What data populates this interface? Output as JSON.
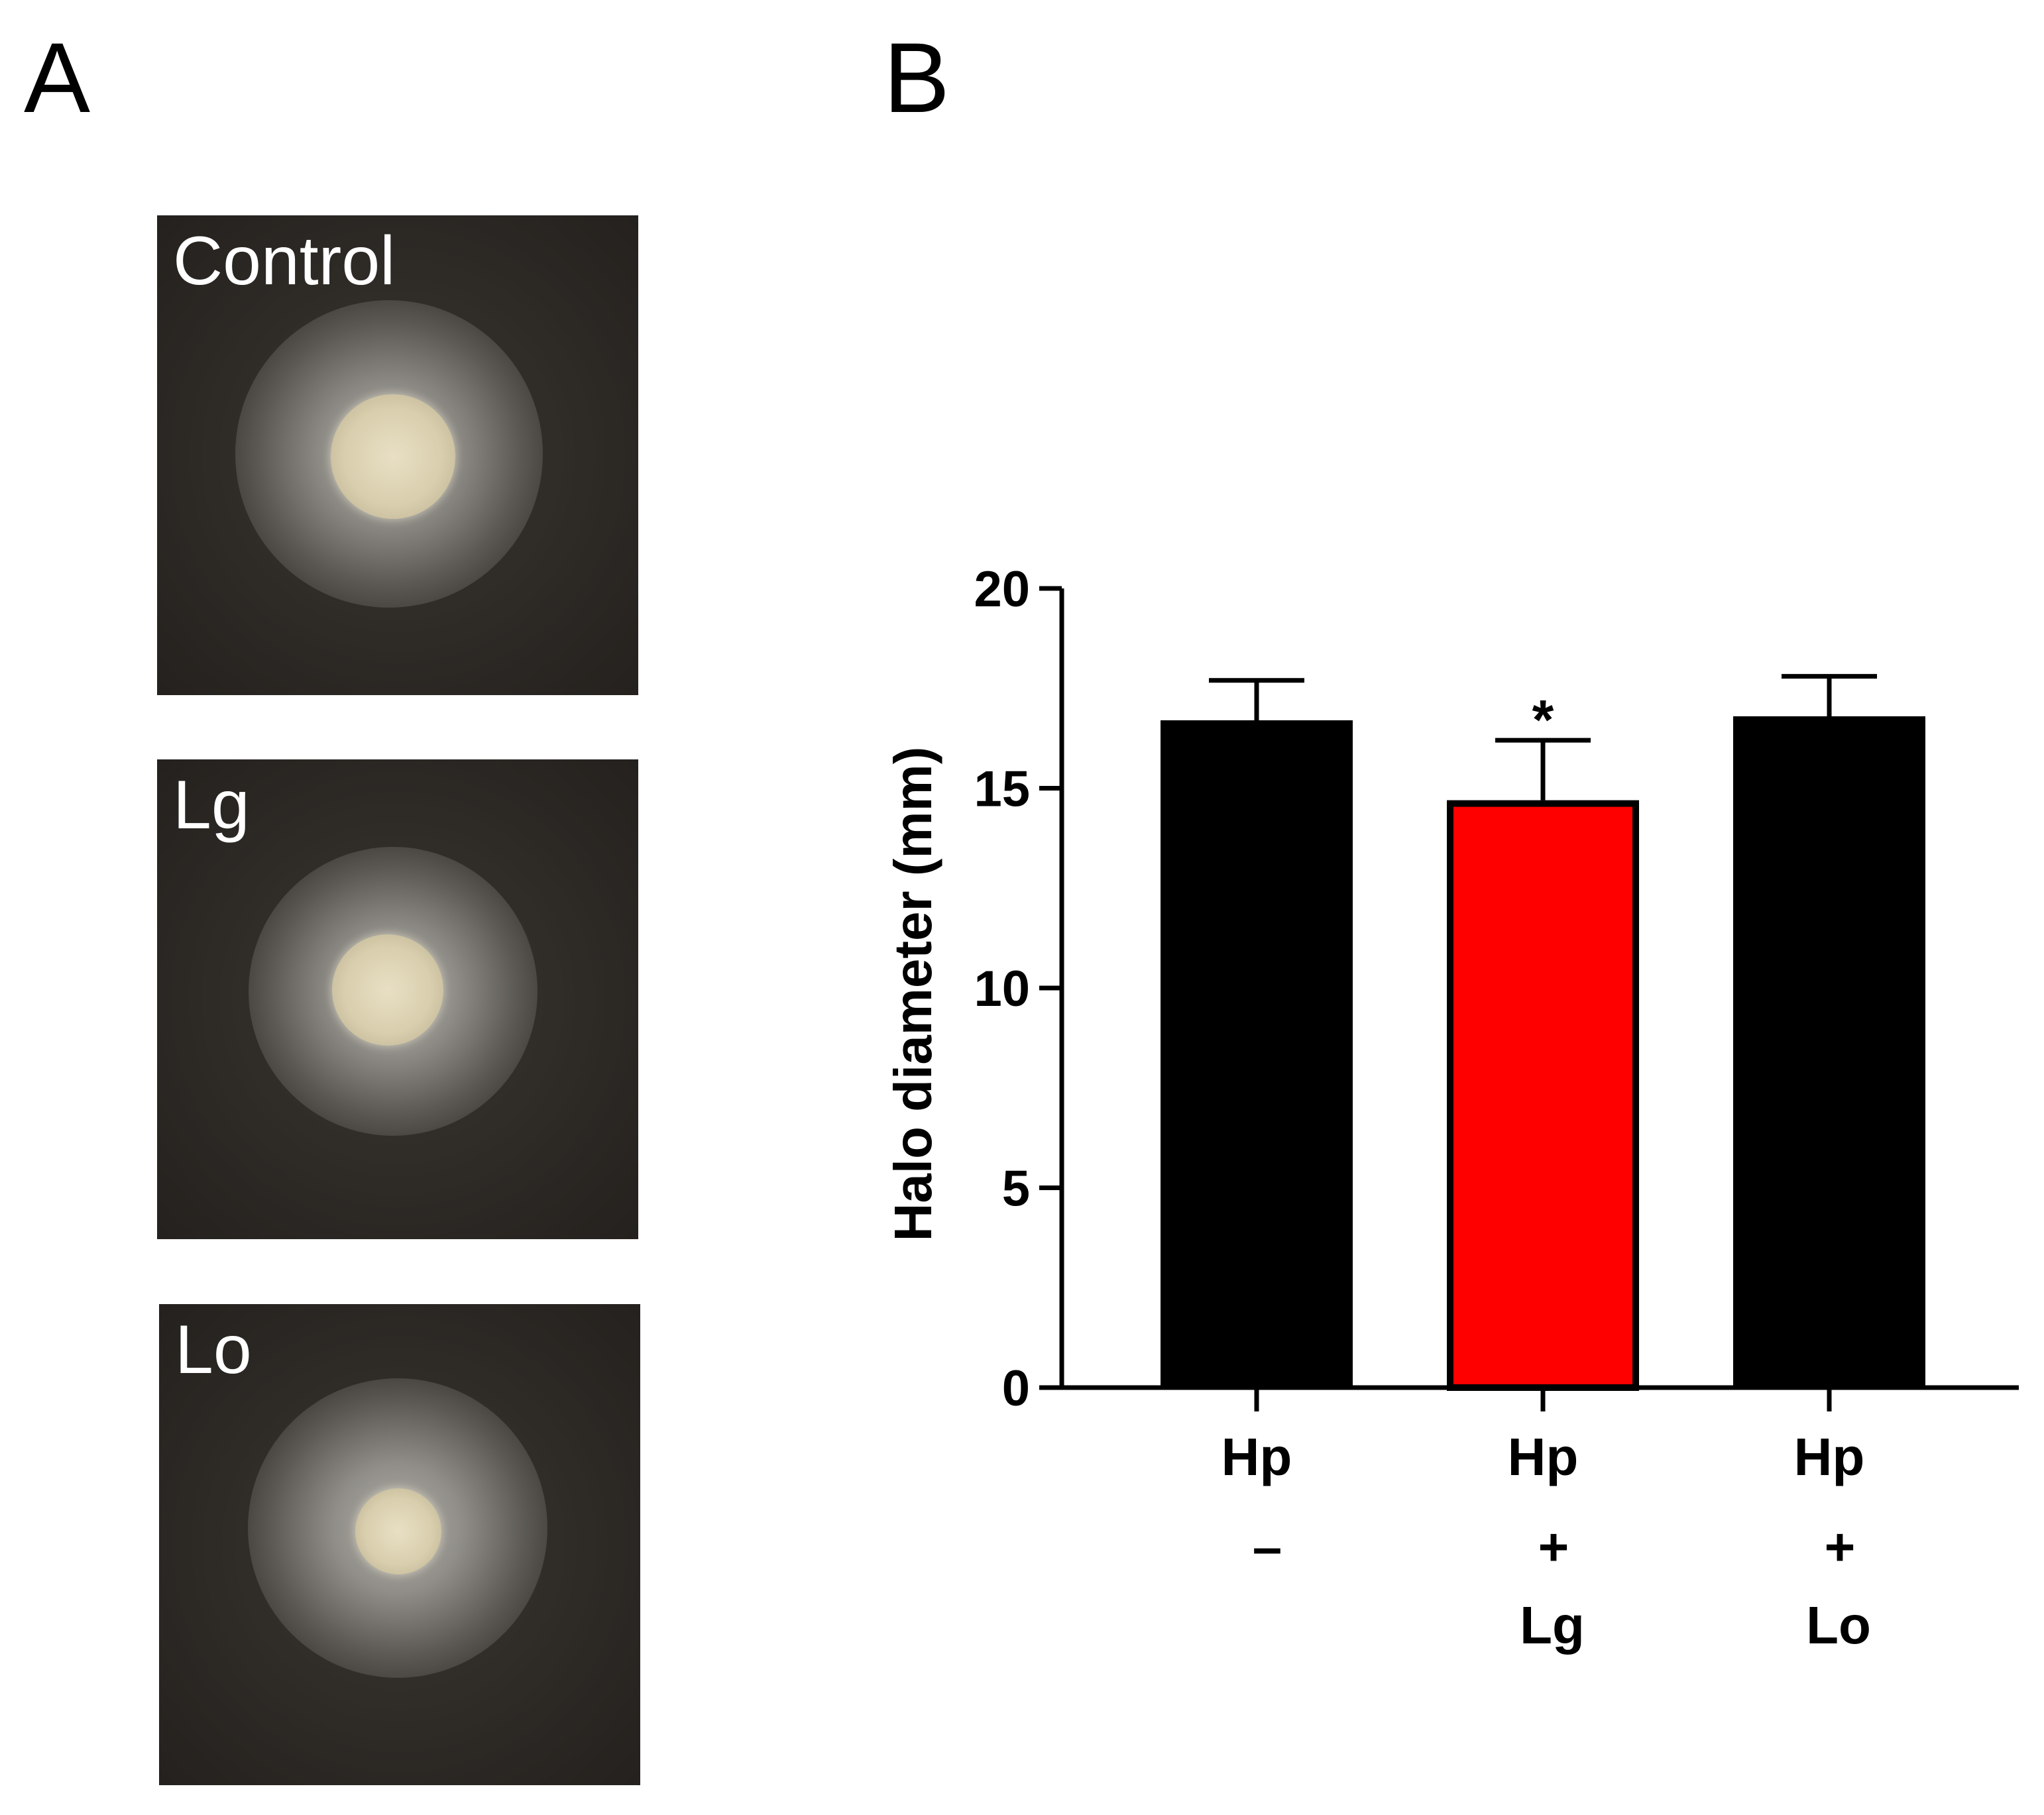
{
  "panels": {
    "a_label": "A",
    "b_label": "B"
  },
  "plates": [
    {
      "label": "Control"
    },
    {
      "label": "Lg"
    },
    {
      "label": "Lo"
    }
  ],
  "chart_data": {
    "type": "bar",
    "ylabel": "Halo diameter (mm)",
    "xlabel": "",
    "ylim": [
      0,
      20
    ],
    "yticks": [
      0,
      5,
      10,
      15,
      20
    ],
    "categories": [
      {
        "lines": [
          "Hp",
          "–",
          ""
        ]
      },
      {
        "lines": [
          "Hp",
          "+",
          "Lg"
        ]
      },
      {
        "lines": [
          "Hp",
          "+",
          "Lo"
        ]
      }
    ],
    "values": [
      16.7,
      14.7,
      16.8
    ],
    "errors": [
      1.0,
      1.5,
      1.0
    ],
    "colors": [
      "#000000",
      "#ff0000",
      "#000000"
    ],
    "annotations": [
      "",
      "*",
      ""
    ],
    "grid": false,
    "legend": "none"
  }
}
